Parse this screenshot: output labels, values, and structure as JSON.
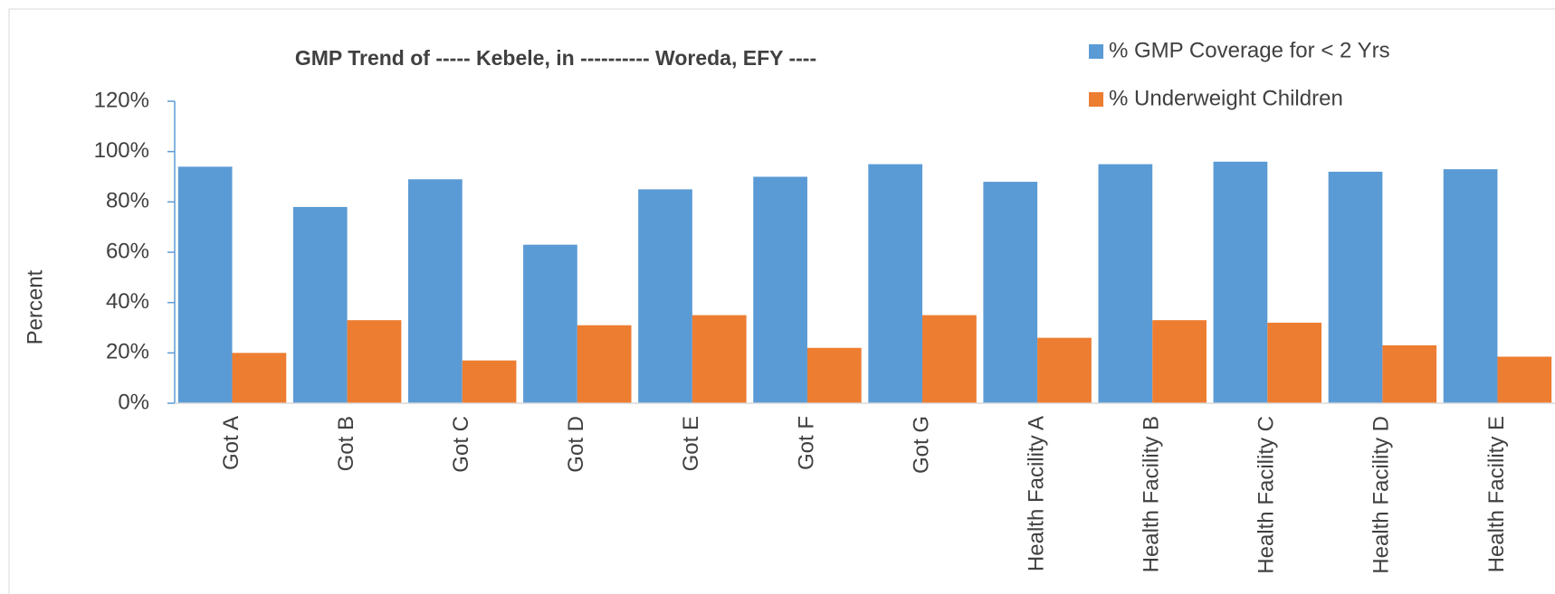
{
  "chart_data": {
    "type": "bar",
    "title": "GMP Trend of ----- Kebele, in ---------- Woreda, EFY ----",
    "y_label": "Percent",
    "categories": [
      "Got A",
      "Got B",
      "Got C",
      "Got D",
      "Got E",
      "Got F",
      "Got G",
      "Health Facility A",
      "Health Facility B",
      "Health Facility C",
      "Health Facility D",
      "Health Facility E"
    ],
    "series": [
      {
        "name": "% GMP Coverage for < 2 Yrs",
        "color": "#5b9bd5",
        "values": [
          94,
          78,
          89,
          63,
          85,
          90,
          95,
          88,
          95,
          96,
          92,
          93
        ]
      },
      {
        "name": "% Underweight  Children",
        "color": "#ed7d31",
        "values": [
          20,
          33,
          17,
          31,
          35,
          22,
          35,
          26,
          33,
          32,
          23,
          18.5
        ]
      }
    ],
    "ylim": [
      0,
      120
    ],
    "yticks": [
      {
        "value": 0,
        "label": "0%"
      },
      {
        "value": 20,
        "label": "20%"
      },
      {
        "value": 40,
        "label": "40%"
      },
      {
        "value": 60,
        "label": "60%"
      },
      {
        "value": 80,
        "label": "80%"
      },
      {
        "value": 100,
        "label": "100%"
      },
      {
        "value": 120,
        "label": "120%"
      }
    ],
    "legend": "top-right"
  }
}
